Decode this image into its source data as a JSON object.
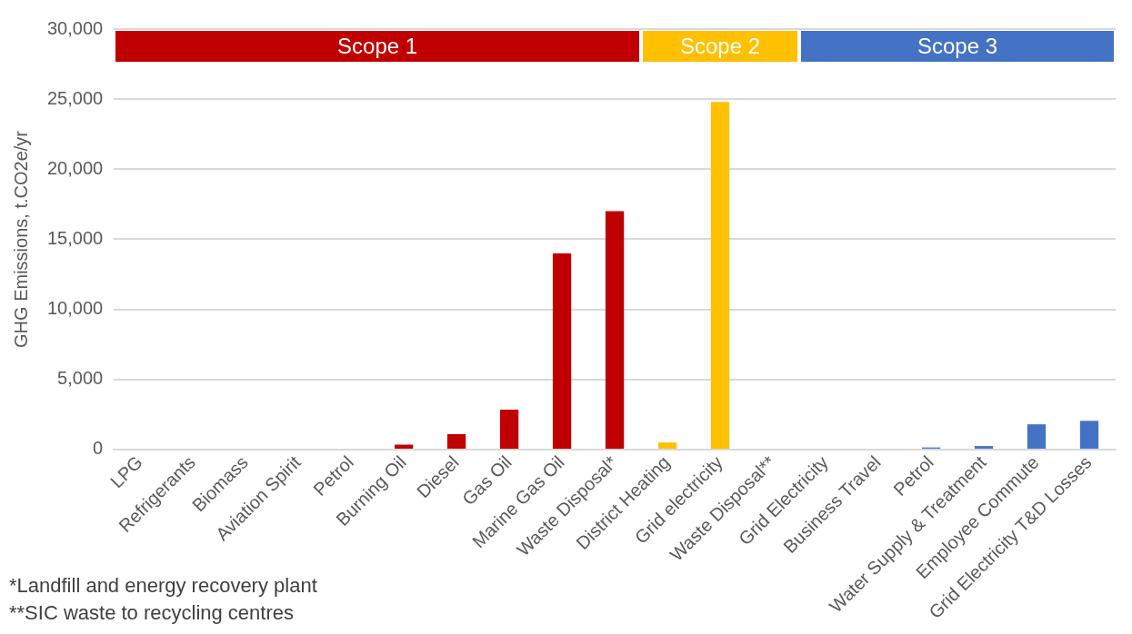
{
  "chart_data": {
    "type": "bar",
    "ylabel": "GHG Emissions, t.CO2e/yr",
    "categories": [
      "LPG",
      "Refrigerants",
      "Biomass",
      "Aviation Spirit",
      "Petrol",
      "Burning Oil",
      "Diesel",
      "Gas Oil",
      "Marine Gas Oil",
      "Waste Disposal*",
      "District Heating",
      "Grid electricity",
      "Waste Disposal**",
      "Grid Electricity",
      "Business Travel",
      "Petrol",
      "Water Supply & Treatment",
      "Employee Commute",
      "Grid Electricity T&D Losses"
    ],
    "values": [
      0,
      0,
      0,
      0,
      0,
      350,
      1100,
      2850,
      14000,
      17000,
      500,
      24800,
      0,
      0,
      0,
      150,
      250,
      1800,
      2050
    ],
    "colors": [
      "#c00000",
      "#c00000",
      "#c00000",
      "#c00000",
      "#c00000",
      "#c00000",
      "#c00000",
      "#c00000",
      "#c00000",
      "#c00000",
      "#ffc000",
      "#ffc000",
      "#ffc000",
      "#4472c4",
      "#4472c4",
      "#4472c4",
      "#4472c4",
      "#4472c4",
      "#4472c4"
    ],
    "ylim": [
      0,
      30000
    ],
    "yticks": [
      0,
      {
        "value": 5000,
        "label": "5,000"
      },
      {
        "value": 10000,
        "label": "10,000"
      },
      {
        "value": 15000,
        "label": "15,000"
      },
      {
        "value": 20000,
        "label": "20,000"
      },
      {
        "value": 25000,
        "label": "25,000"
      },
      {
        "value": 30000,
        "label": "30,000"
      }
    ],
    "grid": "y",
    "legend": false,
    "annotations": [
      "Scope 1",
      "Scope 2",
      "Scope 3",
      "*Landfill and energy recovery plant",
      "**SIC waste to recycling centres"
    ]
  }
}
